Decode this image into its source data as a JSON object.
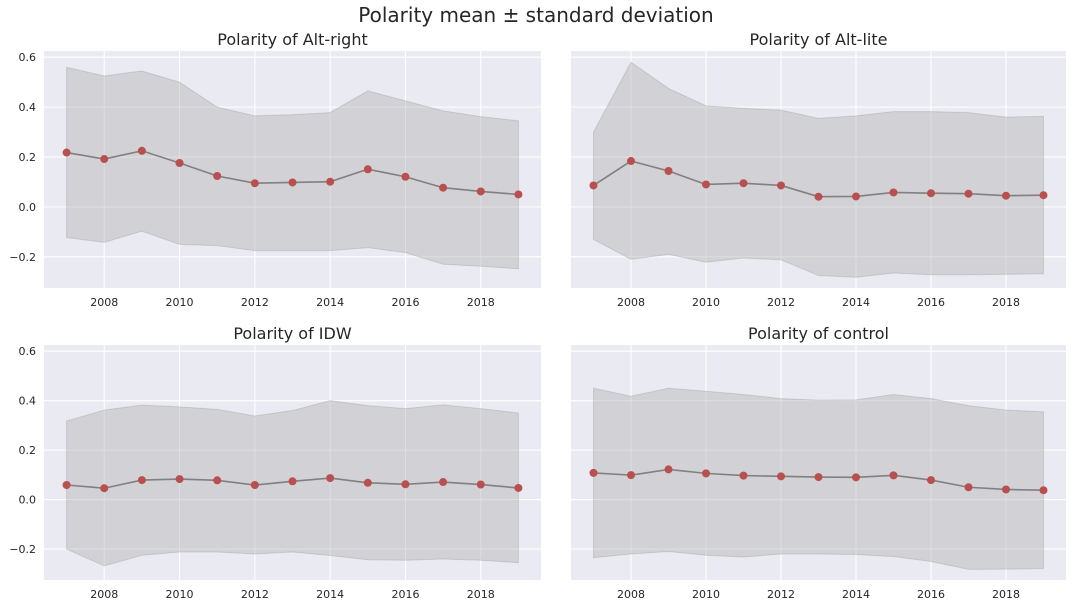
{
  "figure": {
    "title": "Polarity mean ± standard deviation"
  },
  "colors": {
    "background": "#eaeaf2",
    "grid": "#ffffff",
    "band": "#a9a9a9",
    "line": "#808080",
    "marker": "#b94f4f"
  },
  "chart_data": [
    {
      "type": "line",
      "title": "Polarity of Alt-right",
      "x": [
        2007,
        2008,
        2009,
        2010,
        2011,
        2012,
        2013,
        2014,
        2015,
        2016,
        2017,
        2018,
        2019
      ],
      "mean": [
        0.218,
        0.192,
        0.225,
        0.176,
        0.124,
        0.095,
        0.098,
        0.101,
        0.151,
        0.121,
        0.077,
        0.062,
        0.05
      ],
      "upper": [
        0.56,
        0.525,
        0.545,
        0.5,
        0.4,
        0.365,
        0.37,
        0.378,
        0.465,
        0.425,
        0.385,
        0.362,
        0.345
      ],
      "lower": [
        -0.123,
        -0.142,
        -0.097,
        -0.15,
        -0.155,
        -0.175,
        -0.175,
        -0.175,
        -0.163,
        -0.183,
        -0.23,
        -0.238,
        -0.248
      ],
      "xticks": [
        2008,
        2010,
        2012,
        2014,
        2016,
        2018
      ],
      "yticks": [
        -0.2,
        0.0,
        0.2,
        0.4,
        0.6
      ],
      "ytick_labels": [
        "−0.2",
        "0.0",
        "0.2",
        "0.4",
        "0.6"
      ],
      "xlim": [
        2006.4,
        2019.6
      ],
      "ylim": [
        -0.325,
        0.625
      ],
      "grid": true
    },
    {
      "type": "line",
      "title": "Polarity of Alt-lite",
      "x": [
        2007,
        2008,
        2009,
        2010,
        2011,
        2012,
        2013,
        2014,
        2015,
        2016,
        2017,
        2018,
        2019
      ],
      "mean": [
        0.086,
        0.184,
        0.144,
        0.09,
        0.095,
        0.086,
        0.041,
        0.042,
        0.058,
        0.055,
        0.053,
        0.045,
        0.047
      ],
      "upper": [
        0.3,
        0.58,
        0.475,
        0.405,
        0.395,
        0.388,
        0.355,
        0.365,
        0.382,
        0.382,
        0.378,
        0.36,
        0.363
      ],
      "lower": [
        -0.13,
        -0.21,
        -0.19,
        -0.222,
        -0.205,
        -0.212,
        -0.275,
        -0.282,
        -0.265,
        -0.272,
        -0.272,
        -0.27,
        -0.268
      ],
      "xticks": [
        2008,
        2010,
        2012,
        2014,
        2016,
        2018
      ],
      "yticks": [
        -0.2,
        0.0,
        0.2,
        0.4,
        0.6
      ],
      "ytick_labels": [],
      "xlim": [
        2006.4,
        2019.6
      ],
      "ylim": [
        -0.325,
        0.625
      ],
      "grid": true
    },
    {
      "type": "line",
      "title": "Polarity of IDW",
      "x": [
        2007,
        2008,
        2009,
        2010,
        2011,
        2012,
        2013,
        2014,
        2015,
        2016,
        2017,
        2018,
        2019
      ],
      "mean": [
        0.059,
        0.046,
        0.079,
        0.083,
        0.078,
        0.059,
        0.074,
        0.087,
        0.068,
        0.062,
        0.071,
        0.061,
        0.047
      ],
      "upper": [
        0.318,
        0.362,
        0.382,
        0.375,
        0.365,
        0.338,
        0.36,
        0.4,
        0.38,
        0.368,
        0.383,
        0.368,
        0.35
      ],
      "lower": [
        -0.2,
        -0.268,
        -0.225,
        -0.212,
        -0.212,
        -0.22,
        -0.212,
        -0.226,
        -0.243,
        -0.245,
        -0.24,
        -0.245,
        -0.255
      ],
      "xticks": [
        2008,
        2010,
        2012,
        2014,
        2016,
        2018
      ],
      "yticks": [
        -0.2,
        0.0,
        0.2,
        0.4,
        0.6
      ],
      "ytick_labels": [
        "−0.2",
        "0.0",
        "0.2",
        "0.4",
        "0.6"
      ],
      "xlim": [
        2006.4,
        2019.6
      ],
      "ylim": [
        -0.325,
        0.625
      ],
      "grid": true
    },
    {
      "type": "line",
      "title": "Polarity of control",
      "x": [
        2007,
        2008,
        2009,
        2010,
        2011,
        2012,
        2013,
        2014,
        2015,
        2016,
        2017,
        2018,
        2019
      ],
      "mean": [
        0.108,
        0.099,
        0.122,
        0.106,
        0.097,
        0.094,
        0.091,
        0.09,
        0.098,
        0.079,
        0.05,
        0.041,
        0.038
      ],
      "upper": [
        0.45,
        0.418,
        0.45,
        0.438,
        0.425,
        0.408,
        0.402,
        0.403,
        0.425,
        0.408,
        0.38,
        0.362,
        0.355
      ],
      "lower": [
        -0.235,
        -0.22,
        -0.21,
        -0.225,
        -0.232,
        -0.22,
        -0.22,
        -0.222,
        -0.23,
        -0.25,
        -0.282,
        -0.281,
        -0.279
      ],
      "xticks": [
        2008,
        2010,
        2012,
        2014,
        2016,
        2018
      ],
      "yticks": [
        -0.2,
        0.0,
        0.2,
        0.4,
        0.6
      ],
      "ytick_labels": [],
      "xlim": [
        2006.4,
        2019.6
      ],
      "ylim": [
        -0.325,
        0.625
      ],
      "grid": true
    }
  ]
}
